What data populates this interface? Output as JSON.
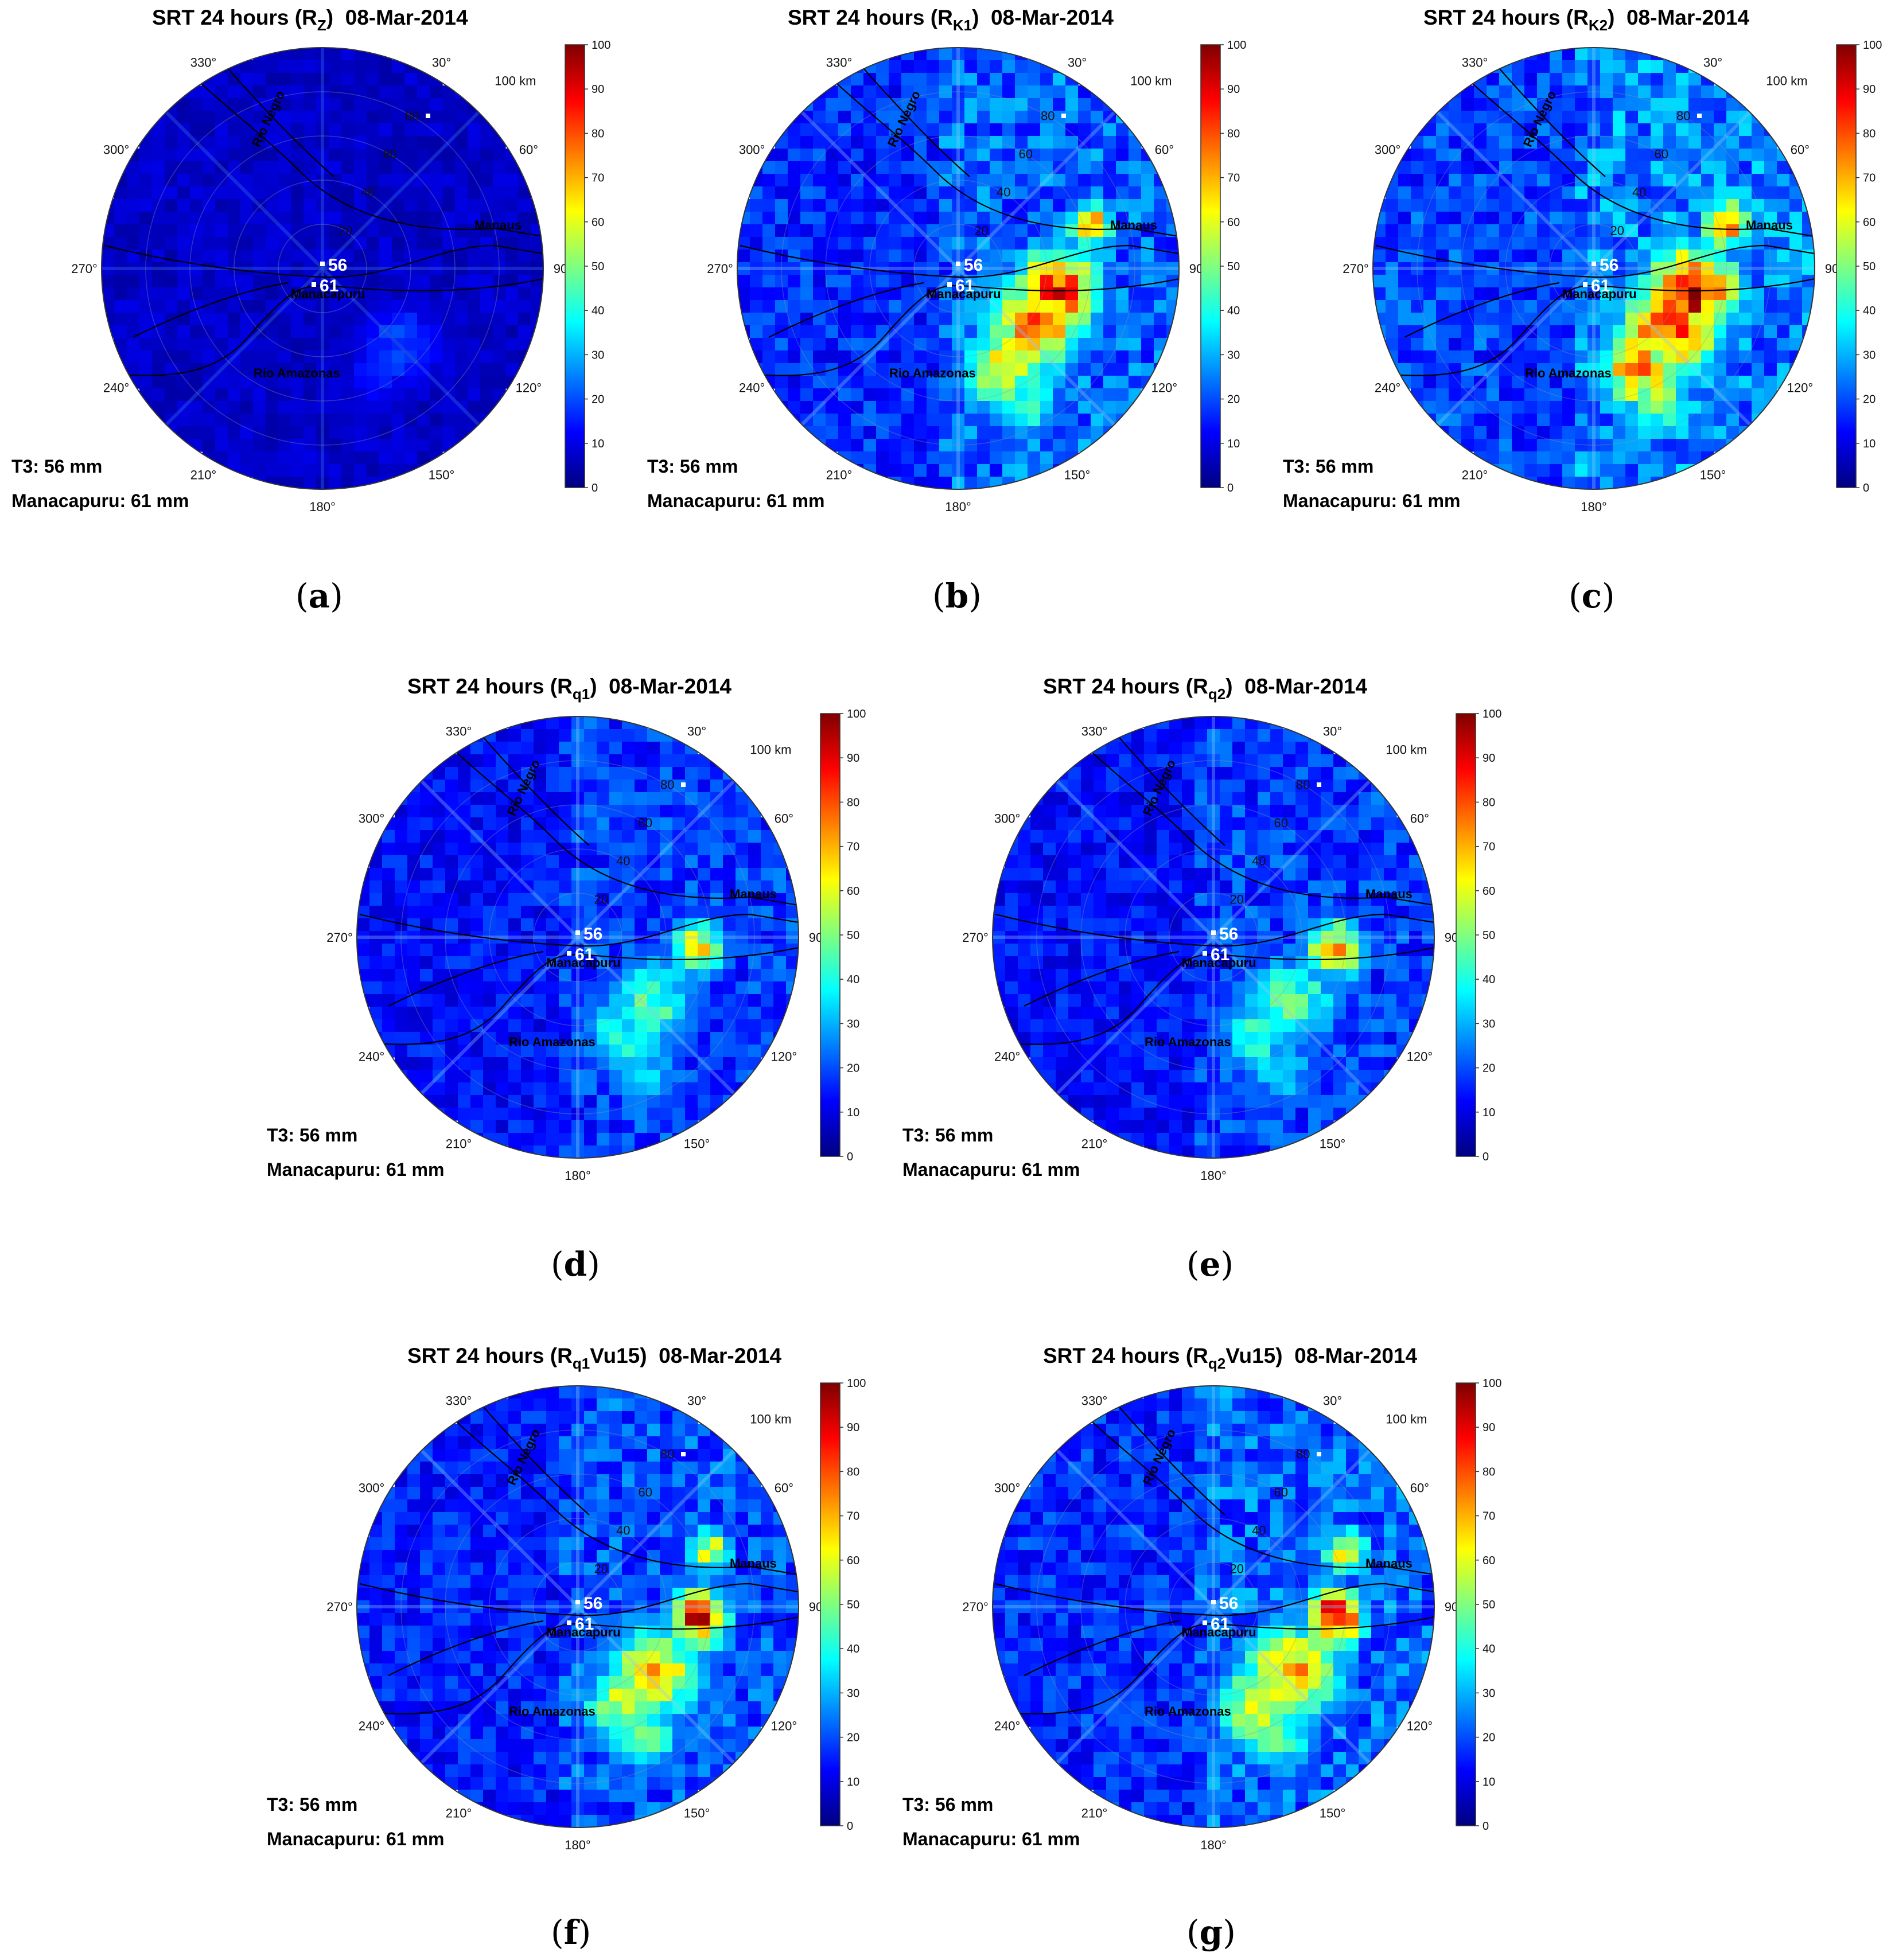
{
  "common": {
    "title_prefix": "SRT 24 hours (",
    "date": "08-Mar-2014",
    "t3_label": "T3: 56 mm",
    "manacapuru_label": "Manacapuru: 61 mm",
    "gauge_t3_value": "56",
    "gauge_manacapuru_value": "61",
    "range_unit_label": "100 km",
    "ring_labels": [
      "20",
      "40",
      "60",
      "80"
    ],
    "azimuth_labels": [
      "30°",
      "60°",
      "90",
      "120°",
      "150°",
      "180°",
      "210°",
      "240°",
      "270°",
      "300°",
      "330°"
    ],
    "place_labels": [
      "Rio Negro",
      "Manaus",
      "Manacapuru",
      "Rio Amazonas"
    ],
    "colorbar_ticks": [
      "0",
      "10",
      "20",
      "30",
      "40",
      "50",
      "60",
      "70",
      "80",
      "90",
      "100"
    ],
    "colormap": [
      "#00007f",
      "#0000ff",
      "#007fff",
      "#00ffff",
      "#7fff7f",
      "#ffff00",
      "#ff7f00",
      "#ff0000",
      "#7f0000"
    ],
    "map_line_color": "#000000"
  },
  "panels": [
    {
      "id": "a",
      "var_base": "R",
      "var_sub": "Z",
      "var_suffix": "",
      "caption": "a"
    },
    {
      "id": "b",
      "var_base": "R",
      "var_sub": "K1",
      "var_suffix": "",
      "caption": "b"
    },
    {
      "id": "c",
      "var_base": "R",
      "var_sub": "K2",
      "var_suffix": "",
      "caption": "c"
    },
    {
      "id": "d",
      "var_base": "R",
      "var_sub": "q1",
      "var_suffix": "",
      "caption": "d"
    },
    {
      "id": "e",
      "var_base": "R",
      "var_sub": "q2",
      "var_suffix": "",
      "caption": "e"
    },
    {
      "id": "f",
      "var_base": "R",
      "var_sub": "q1",
      "var_suffix": "Vu15",
      "caption": "f"
    },
    {
      "id": "g",
      "var_base": "R",
      "var_sub": "q2",
      "var_suffix": "Vu15",
      "caption": "g"
    }
  ]
}
